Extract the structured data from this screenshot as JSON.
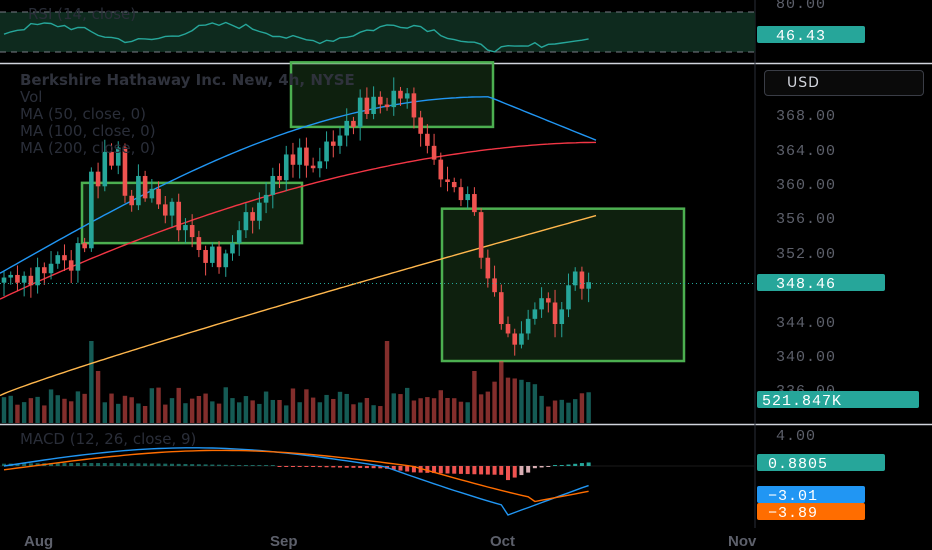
{
  "colors": {
    "background": "#000000",
    "up": "#26a69a",
    "down": "#ef5350",
    "ma50": "#2196f3",
    "ma100": "#f23645",
    "ma200": "#ffb74d",
    "rsi": "#26a69a",
    "macd_line": "#2196f3",
    "signal_line": "#ff6d00",
    "box": "#4caf50",
    "axis_text": "#5d606b"
  },
  "header": {
    "symbol_title": "Berkshire Hathaway Inc. New, 4h, NYSE",
    "vol_label": "Vol",
    "ma50_label": "MA (50, close, 0)",
    "ma100_label": "MA (100, close, 0)",
    "ma200_label": "MA (200, close, 0)",
    "currency_button": "USD"
  },
  "rsi_panel": {
    "legend": "RSI (14, close)",
    "top_tick": "80.00",
    "value_badge": "46.43"
  },
  "macd_panel": {
    "legend": "MACD (12, 26, close, 9)",
    "top_tick": "4.00",
    "histogram_badge": "0.8805",
    "macd_badge": "−3.01",
    "signal_badge": "−3.89"
  },
  "price_axis": {
    "ticks": [
      "368.00",
      "364.00",
      "360.00",
      "356.00",
      "352.00",
      "344.00",
      "340.00",
      "336.00"
    ],
    "last_price_badge": "348.46",
    "volume_badge": "521.847K"
  },
  "time_axis": {
    "labels": [
      "Aug",
      "Sep",
      "Oct",
      "Nov"
    ]
  },
  "chart_data": {
    "type": "candlestick",
    "title": "Berkshire Hathaway Inc. New, 4h, NYSE",
    "ylim": [
      334,
      372
    ],
    "price_ticks": [
      368,
      364,
      360,
      356,
      352,
      344,
      340,
      336
    ],
    "last_price": 348.46,
    "rsi_last": 46.43,
    "volume_last": "521.847K",
    "macd_histogram_last": 0.8805,
    "macd_last": -3.01,
    "signal_last": -3.89,
    "time_labels": [
      "Aug",
      "Sep",
      "Oct",
      "Nov"
    ],
    "candles_close": [
      349.0,
      349.3,
      348.4,
      349.2,
      348.1,
      350.2,
      349.5,
      350.6,
      351.6,
      351.0,
      349.8,
      353.0,
      352.4,
      361.3,
      359.6,
      363.6,
      362.0,
      364.1,
      358.5,
      357.4,
      360.8,
      358.2,
      359.3,
      357.5,
      356.2,
      357.8,
      354.5,
      355.1,
      353.7,
      352.2,
      350.7,
      352.6,
      350.2,
      351.8,
      353.0,
      354.5,
      356.6,
      355.6,
      357.7,
      358.6,
      360.8,
      360.3,
      363.3,
      362.1,
      364.1,
      362.0,
      361.7,
      362.5,
      364.8,
      364.3,
      365.5,
      367.2,
      366.5,
      369.9,
      368.0,
      370.0,
      369.1,
      368.8,
      370.7,
      369.8,
      370.4,
      367.6,
      365.7,
      364.3,
      362.7,
      360.4,
      360.1,
      359.5,
      358.0,
      358.7,
      356.6,
      351.3,
      348.9,
      347.3,
      343.6,
      342.5,
      341.2,
      342.5,
      344.2,
      345.3,
      346.6,
      346.1,
      343.6,
      345.3,
      348.1,
      349.7,
      347.7,
      348.46
    ],
    "boxes": [
      {
        "from_date": "Aug",
        "price_range": [
          353.0,
          360.0
        ]
      },
      {
        "from_date": "Sep",
        "price_range": [
          366.5,
          374.0
        ]
      },
      {
        "from_date": "Oct",
        "price_range": [
          339.3,
          357.0
        ]
      }
    ]
  }
}
